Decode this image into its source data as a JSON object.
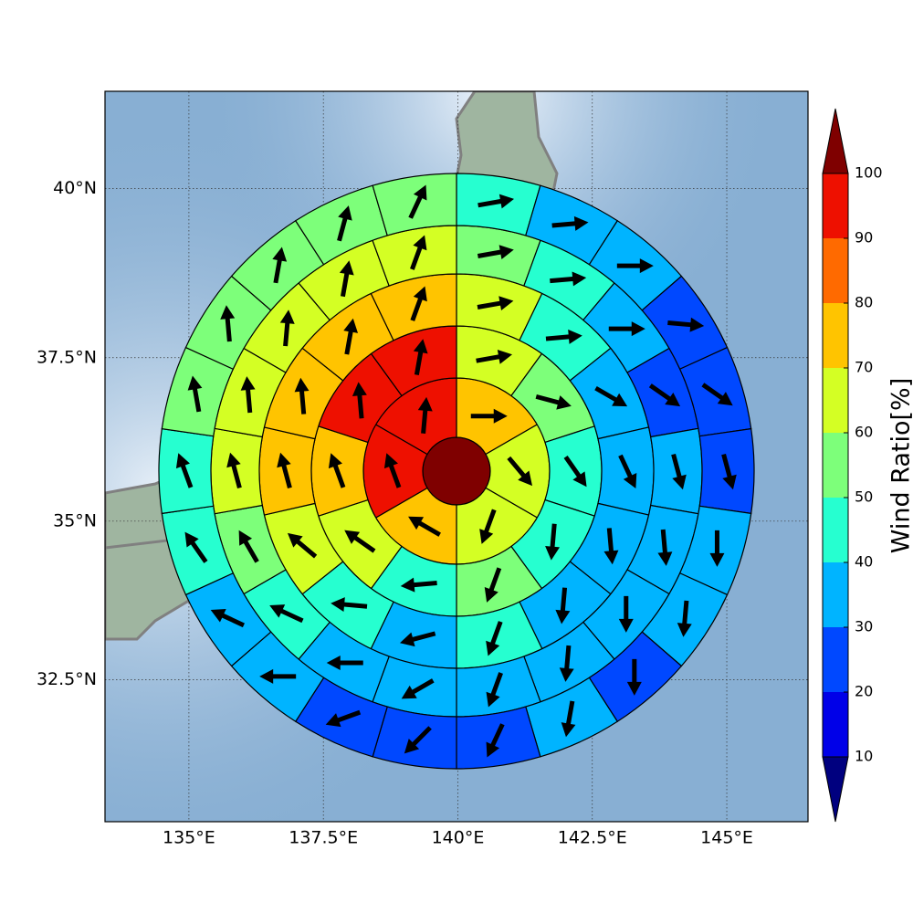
{
  "chart_data": {
    "type": "polar-sector-map",
    "projection": "mercator",
    "xlim": [
      133.44,
      146.51
    ],
    "ylim": [
      30.2,
      41.4
    ],
    "xticks": [
      {
        "value": 135,
        "label": "135°E"
      },
      {
        "value": 137.5,
        "label": "137.5°E"
      },
      {
        "value": 140,
        "label": "140°E"
      },
      {
        "value": 142.5,
        "label": "142.5°E"
      },
      {
        "value": 145,
        "label": "145°E"
      }
    ],
    "yticks": [
      {
        "value": 32.5,
        "label": "32.5°N"
      },
      {
        "value": 35,
        "label": "35°N"
      },
      {
        "value": 37.5,
        "label": "37.5°N"
      },
      {
        "value": 40,
        "label": "40°N"
      }
    ],
    "grid": true,
    "center": {
      "value": 105
    },
    "rings": [
      {
        "values": [
          75,
          65,
          65,
          75,
          95,
          95
        ],
        "directions": [
          90,
          140,
          200,
          300,
          340,
          5
        ]
      },
      {
        "values": [
          65,
          55,
          45,
          45,
          55,
          45,
          65,
          75,
          95,
          95
        ],
        "directions": [
          80,
          105,
          145,
          185,
          200,
          265,
          305,
          340,
          355,
          10
        ]
      },
      {
        "values": [
          65,
          45,
          35,
          35,
          35,
          35,
          45,
          35,
          45,
          65,
          75,
          75,
          75,
          75
        ],
        "directions": [
          80,
          85,
          120,
          155,
          175,
          185,
          200,
          255,
          275,
          310,
          345,
          355,
          10,
          20
        ]
      },
      {
        "values": [
          55,
          45,
          35,
          25,
          35,
          35,
          35,
          35,
          35,
          35,
          35,
          45,
          55,
          65,
          65,
          65,
          65,
          65
        ],
        "directions": [
          80,
          85,
          90,
          125,
          165,
          175,
          180,
          185,
          200,
          240,
          270,
          295,
          330,
          345,
          355,
          5,
          10,
          20
        ]
      },
      {
        "values": [
          45,
          35,
          35,
          25,
          25,
          25,
          35,
          35,
          25,
          35,
          25,
          25,
          25,
          35,
          35,
          45,
          45,
          55,
          55,
          55,
          55,
          55
        ],
        "directions": [
          80,
          85,
          90,
          95,
          125,
          165,
          180,
          185,
          180,
          190,
          205,
          225,
          250,
          270,
          295,
          325,
          340,
          350,
          355,
          10,
          15,
          25
        ]
      }
    ],
    "colorbar": {
      "label": "Wind Ratio[%]",
      "levels": [
        10,
        20,
        30,
        40,
        50,
        60,
        70,
        80,
        90,
        100
      ],
      "colors": [
        "#00007f",
        "#0000e8",
        "#0048ff",
        "#00b4ff",
        "#26ffd0",
        "#7dff7a",
        "#d4ff24",
        "#ffc400",
        "#ff6a00",
        "#ee1000",
        "#7f0000"
      ],
      "extend": "both"
    }
  }
}
